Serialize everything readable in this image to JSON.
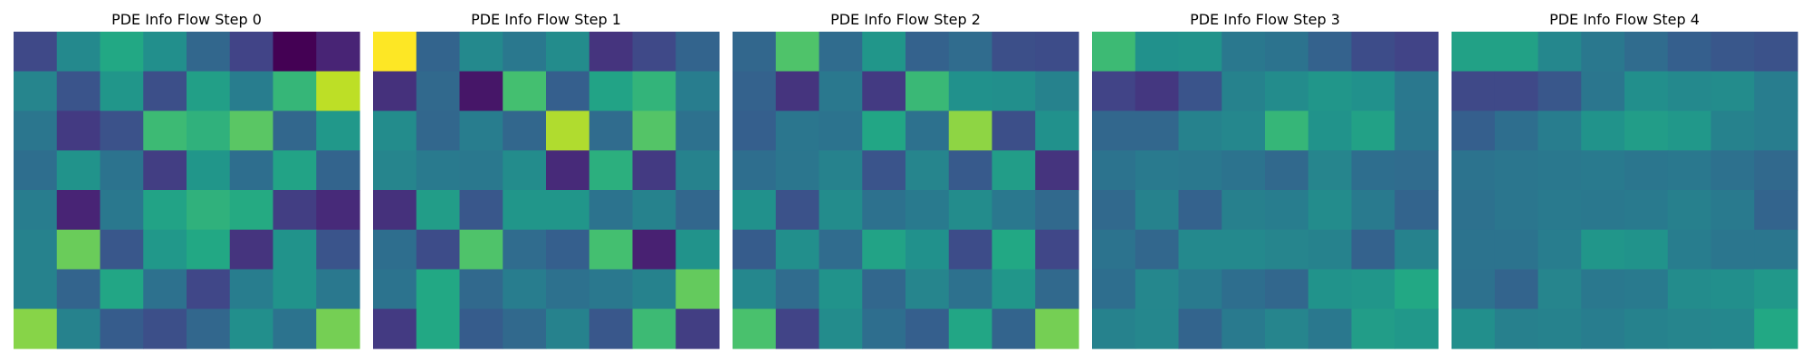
{
  "figure": {
    "colormap": "viridis",
    "axes_visible": false
  },
  "chart_data": [
    {
      "type": "heatmap",
      "title": "PDE Info Flow Step 0",
      "rows": 8,
      "cols": 8,
      "vmin": 0.0,
      "vmax": 1.0,
      "values": [
        [
          0.22,
          0.47,
          0.6,
          0.49,
          0.33,
          0.2,
          0.0,
          0.1
        ],
        [
          0.45,
          0.26,
          0.52,
          0.24,
          0.56,
          0.42,
          0.66,
          0.9
        ],
        [
          0.39,
          0.17,
          0.25,
          0.68,
          0.64,
          0.74,
          0.33,
          0.53
        ],
        [
          0.36,
          0.51,
          0.38,
          0.18,
          0.52,
          0.36,
          0.58,
          0.32
        ],
        [
          0.42,
          0.1,
          0.4,
          0.58,
          0.64,
          0.61,
          0.18,
          0.12
        ],
        [
          0.44,
          0.77,
          0.27,
          0.53,
          0.6,
          0.15,
          0.51,
          0.26
        ],
        [
          0.44,
          0.32,
          0.59,
          0.37,
          0.21,
          0.42,
          0.51,
          0.4
        ],
        [
          0.82,
          0.44,
          0.29,
          0.24,
          0.33,
          0.49,
          0.38,
          0.79
        ]
      ]
    },
    {
      "type": "heatmap",
      "title": "PDE Info Flow Step 1",
      "rows": 8,
      "cols": 8,
      "vmin": 0.0,
      "vmax": 1.0,
      "values": [
        [
          1.0,
          0.32,
          0.47,
          0.4,
          0.48,
          0.15,
          0.22,
          0.32
        ],
        [
          0.14,
          0.34,
          0.06,
          0.7,
          0.3,
          0.58,
          0.65,
          0.42
        ],
        [
          0.48,
          0.33,
          0.42,
          0.33,
          0.88,
          0.35,
          0.73,
          0.37
        ],
        [
          0.45,
          0.41,
          0.4,
          0.48,
          0.12,
          0.63,
          0.17,
          0.44
        ],
        [
          0.14,
          0.55,
          0.27,
          0.52,
          0.52,
          0.38,
          0.44,
          0.33
        ],
        [
          0.36,
          0.23,
          0.72,
          0.35,
          0.3,
          0.7,
          0.09,
          0.51
        ],
        [
          0.38,
          0.6,
          0.34,
          0.42,
          0.37,
          0.4,
          0.44,
          0.76
        ],
        [
          0.17,
          0.6,
          0.29,
          0.34,
          0.44,
          0.27,
          0.68,
          0.18
        ]
      ]
    },
    {
      "type": "heatmap",
      "title": "PDE Info Flow Step 2",
      "rows": 8,
      "cols": 8,
      "vmin": 0.0,
      "vmax": 1.0,
      "values": [
        [
          0.33,
          0.72,
          0.35,
          0.52,
          0.31,
          0.35,
          0.24,
          0.23
        ],
        [
          0.31,
          0.15,
          0.4,
          0.17,
          0.67,
          0.5,
          0.49,
          0.44
        ],
        [
          0.3,
          0.39,
          0.38,
          0.59,
          0.37,
          0.83,
          0.24,
          0.5
        ],
        [
          0.36,
          0.39,
          0.44,
          0.26,
          0.45,
          0.28,
          0.55,
          0.15
        ],
        [
          0.5,
          0.25,
          0.48,
          0.37,
          0.41,
          0.48,
          0.4,
          0.34
        ],
        [
          0.29,
          0.49,
          0.35,
          0.58,
          0.5,
          0.23,
          0.6,
          0.21
        ],
        [
          0.46,
          0.35,
          0.51,
          0.33,
          0.45,
          0.37,
          0.52,
          0.34
        ],
        [
          0.71,
          0.2,
          0.48,
          0.36,
          0.3,
          0.59,
          0.32,
          0.79
        ]
      ]
    },
    {
      "type": "heatmap",
      "title": "PDE Info Flow Step 3",
      "rows": 8,
      "cols": 8,
      "vmin": 0.0,
      "vmax": 1.0,
      "values": [
        [
          0.68,
          0.5,
          0.51,
          0.4,
          0.38,
          0.31,
          0.23,
          0.2
        ],
        [
          0.2,
          0.16,
          0.26,
          0.44,
          0.48,
          0.52,
          0.5,
          0.4
        ],
        [
          0.33,
          0.33,
          0.44,
          0.46,
          0.66,
          0.51,
          0.57,
          0.39
        ],
        [
          0.38,
          0.41,
          0.4,
          0.38,
          0.34,
          0.45,
          0.36,
          0.35
        ],
        [
          0.34,
          0.44,
          0.31,
          0.43,
          0.42,
          0.48,
          0.41,
          0.32
        ],
        [
          0.38,
          0.33,
          0.47,
          0.47,
          0.45,
          0.44,
          0.31,
          0.44
        ],
        [
          0.36,
          0.46,
          0.41,
          0.36,
          0.33,
          0.51,
          0.52,
          0.6
        ],
        [
          0.44,
          0.46,
          0.32,
          0.41,
          0.45,
          0.4,
          0.55,
          0.53
        ]
      ]
    },
    {
      "type": "heatmap",
      "title": "PDE Info Flow Step 4",
      "rows": 8,
      "cols": 8,
      "vmin": 0.0,
      "vmax": 1.0,
      "values": [
        [
          0.57,
          0.57,
          0.46,
          0.4,
          0.35,
          0.3,
          0.27,
          0.25
        ],
        [
          0.22,
          0.22,
          0.27,
          0.39,
          0.49,
          0.47,
          0.48,
          0.42
        ],
        [
          0.3,
          0.36,
          0.42,
          0.51,
          0.55,
          0.53,
          0.44,
          0.42
        ],
        [
          0.38,
          0.39,
          0.4,
          0.41,
          0.39,
          0.4,
          0.37,
          0.34
        ],
        [
          0.37,
          0.39,
          0.41,
          0.4,
          0.41,
          0.43,
          0.41,
          0.32
        ],
        [
          0.38,
          0.38,
          0.42,
          0.52,
          0.51,
          0.42,
          0.39,
          0.39
        ],
        [
          0.37,
          0.32,
          0.45,
          0.4,
          0.41,
          0.48,
          0.49,
          0.53
        ],
        [
          0.49,
          0.43,
          0.44,
          0.42,
          0.44,
          0.45,
          0.46,
          0.6
        ]
      ]
    }
  ]
}
